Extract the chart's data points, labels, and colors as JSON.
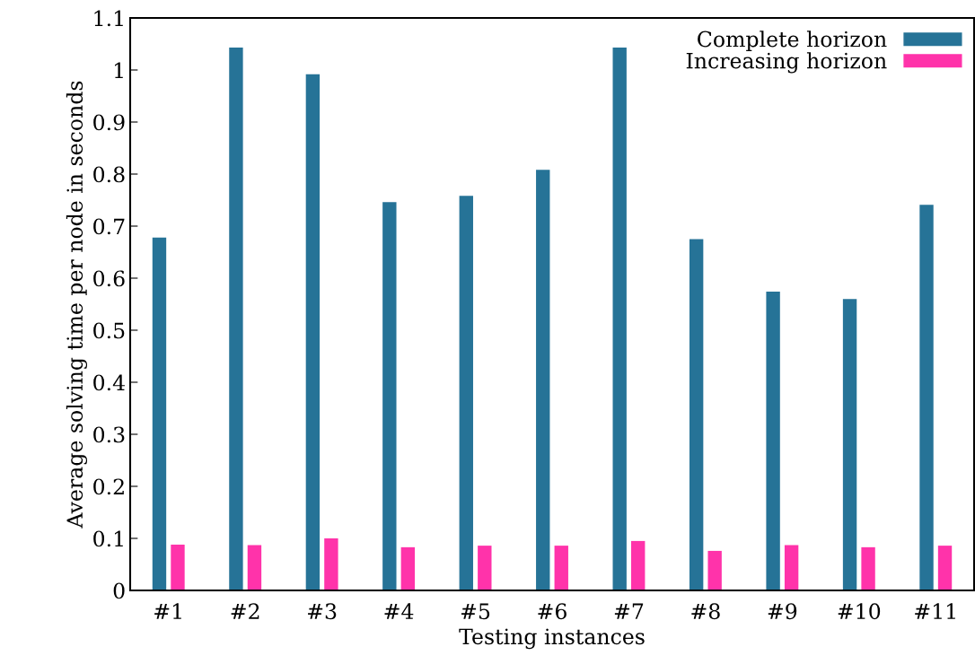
{
  "chart_data": {
    "type": "bar",
    "xlabel": "Testing instances",
    "ylabel": "Average solving time per node in seconds",
    "categories": [
      "#1",
      "#2",
      "#3",
      "#4",
      "#5",
      "#6",
      "#7",
      "#8",
      "#9",
      "#10",
      "#11"
    ],
    "series": [
      {
        "name": "Complete horizon",
        "color": "#267397",
        "values": [
          0.678,
          1.043,
          0.992,
          0.746,
          0.758,
          0.808,
          1.043,
          0.675,
          0.574,
          0.56,
          0.741
        ]
      },
      {
        "name": "Increasing horizon",
        "color": "#ff33aa",
        "values": [
          0.088,
          0.087,
          0.1,
          0.083,
          0.086,
          0.086,
          0.095,
          0.076,
          0.087,
          0.083,
          0.086
        ]
      }
    ],
    "ylim": [
      0,
      1.1
    ],
    "yticks": [
      0,
      0.1,
      0.2,
      0.3,
      0.4,
      0.5,
      0.6,
      0.7,
      0.8,
      0.9,
      1,
      1.1
    ],
    "grid": false,
    "legend": "top right"
  }
}
